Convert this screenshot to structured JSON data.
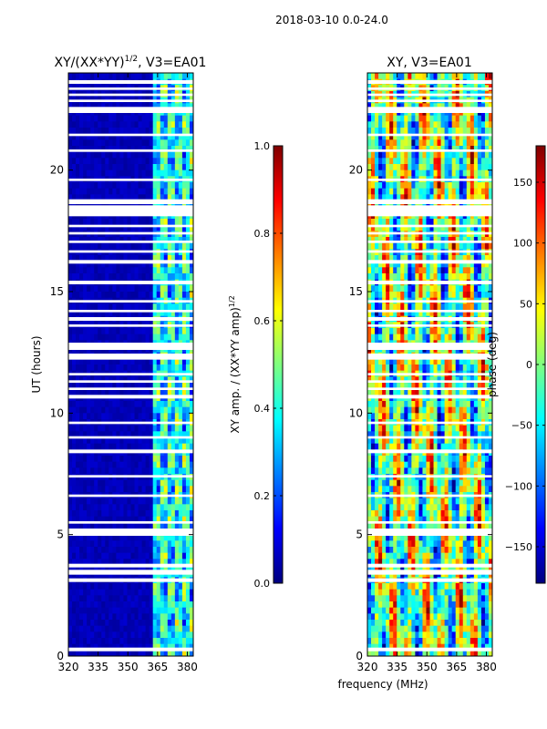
{
  "figure": {
    "suptitle": "2018-03-10 0.0-24.0",
    "shared_xlabel": "frequency (MHz)"
  },
  "colors": {
    "jet": [
      "#00007f",
      "#0000ff",
      "#007fff",
      "#00ffff",
      "#7fff7f",
      "#ffff00",
      "#ff7f00",
      "#ff0000",
      "#7f0000"
    ]
  },
  "chart_data": [
    {
      "type": "heatmap",
      "title": "XY/(XX*YY)^{1/2}, V3=EA01",
      "title_main": "XY/(XX*YY)",
      "title_exp": "1/2",
      "title_rest": ", V3=EA01",
      "xlabel": "",
      "ylabel": "UT (hours)",
      "x_ticks": [
        "320",
        "335",
        "350",
        "365",
        "380"
      ],
      "y_ticks": [
        "0",
        "5",
        "10",
        "15",
        "20"
      ],
      "xlim": [
        320,
        383
      ],
      "ylim": [
        0,
        24
      ],
      "colorbar": {
        "label": "XY amp. / (XX*YY amp)^{1/2}",
        "label_main": "XY amp. / (XX*YY amp)",
        "label_exp": "1/2",
        "range": [
          0.0,
          1.0
        ],
        "ticks": [
          "0.0",
          "0.2",
          "0.4",
          "0.6",
          "0.8",
          "1.0"
        ]
      },
      "description": "Mostly low (~0.05) amplitude below 362 MHz; patchy 0.3-0.6 values between ~362-380 MHz"
    },
    {
      "type": "heatmap",
      "title": "XY, V3=EA01",
      "xlabel": "frequency (MHz)",
      "ylabel": "",
      "x_ticks": [
        "320",
        "335",
        "350",
        "365",
        "380"
      ],
      "y_ticks": [
        "0",
        "5",
        "10",
        "15",
        "20"
      ],
      "xlim": [
        320,
        383
      ],
      "ylim": [
        0,
        24
      ],
      "colorbar": {
        "label": "phase (deg)",
        "range": [
          -180,
          180
        ],
        "ticks": [
          "-150",
          "-100",
          "-50",
          "0",
          "50",
          "100",
          "150"
        ]
      },
      "description": "Phase varies across full -180..180 range with vertical frequency striping"
    }
  ],
  "flagged_ut_gaps": [
    [
      0.2,
      0.35
    ],
    [
      3.05,
      3.2
    ],
    [
      3.35,
      3.55
    ],
    [
      3.65,
      3.8
    ],
    [
      4.95,
      5.25
    ],
    [
      5.45,
      5.55
    ],
    [
      6.55,
      6.65
    ],
    [
      7.35,
      7.45
    ],
    [
      8.35,
      8.5
    ],
    [
      8.95,
      9.05
    ],
    [
      9.55,
      9.65
    ],
    [
      10.6,
      10.75
    ],
    [
      10.95,
      11.05
    ],
    [
      11.25,
      11.35
    ],
    [
      11.55,
      11.65
    ],
    [
      12.2,
      12.45
    ],
    [
      12.6,
      12.9
    ],
    [
      13.55,
      13.65
    ],
    [
      13.8,
      13.95
    ],
    [
      14.15,
      14.25
    ],
    [
      14.55,
      14.65
    ],
    [
      15.3,
      15.45
    ],
    [
      16.15,
      16.3
    ],
    [
      16.6,
      16.7
    ],
    [
      17.0,
      17.1
    ],
    [
      17.35,
      17.45
    ],
    [
      17.65,
      17.75
    ],
    [
      18.1,
      18.55
    ],
    [
      18.6,
      18.8
    ],
    [
      19.55,
      19.65
    ],
    [
      20.75,
      20.85
    ],
    [
      21.4,
      21.5
    ],
    [
      22.35,
      22.6
    ],
    [
      22.8,
      22.9
    ],
    [
      23.05,
      23.15
    ],
    [
      23.3,
      23.4
    ],
    [
      23.55,
      23.7
    ]
  ]
}
